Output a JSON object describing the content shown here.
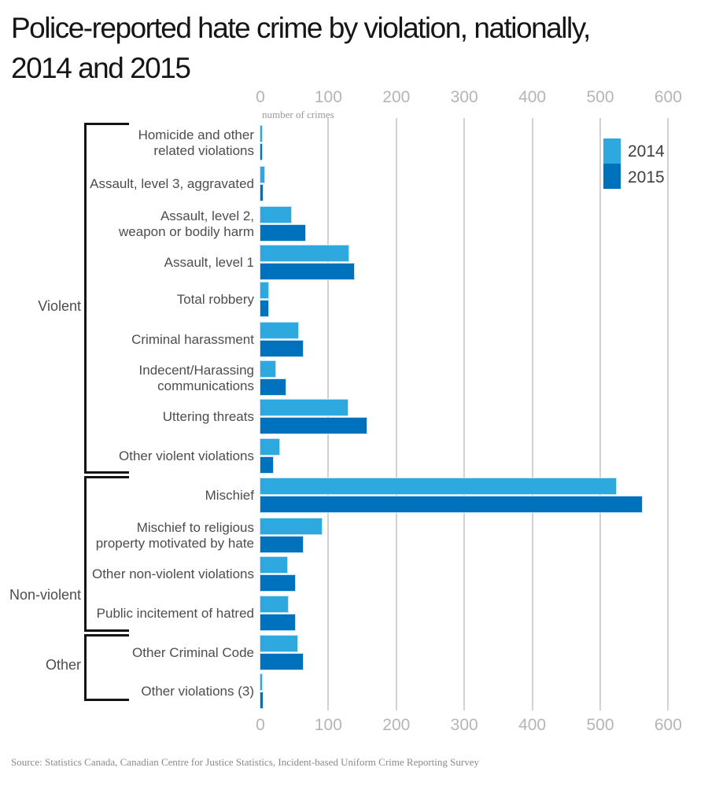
{
  "title_lines": [
    "Police-reported hate crime by violation, nationally,",
    "2014 and 2015"
  ],
  "source": "Source: Statistics Canada, Canadian Centre for Justice Statistics, Incident-based Uniform Crime Reporting Survey",
  "colors": {
    "bar_2014": "#2EA9DF",
    "bar_2015": "#0071BC",
    "gridline": "#D2D2D2",
    "axis_text": "#B5B5B5",
    "category_text": "#4D4D4D",
    "bracket": "#141414"
  },
  "chart_data": {
    "type": "bar",
    "orientation": "horizontal",
    "title": "Police-reported hate crime by violation, nationally, 2014 and 2015",
    "xlabel": "number of crimes",
    "ylabel": "",
    "xlim": [
      0,
      600
    ],
    "x_ticks": [
      0,
      100,
      200,
      300,
      400,
      500,
      600
    ],
    "grid": true,
    "legend_position": "top-right",
    "legend": [
      {
        "name": "2014",
        "color": "#2EA9DF"
      },
      {
        "name": "2015",
        "color": "#0071BC"
      }
    ],
    "categories": [
      "Homicide and other related violations",
      "Assault, level 3, aggravated",
      "Assault, level 2, weapon or bodily harm",
      "Assault, level 1",
      "Total robbery",
      "Criminal harassment",
      "Indecent/Harassing communications",
      "Uttering threats",
      "Other violent violations",
      "Mischief",
      "Mischief to religious property motivated by hate",
      "Other non-violent violations",
      "Public incitement of hatred",
      "Other Criminal Code",
      "Other violations (3)"
    ],
    "category_label_lines": [
      [
        "Homicide and other",
        "related violations"
      ],
      [
        "Assault, level 3, aggravated"
      ],
      [
        "Assault, level 2,",
        "weapon or bodily harm"
      ],
      [
        "Assault, level 1"
      ],
      [
        "Total robbery"
      ],
      [
        "Criminal harassment"
      ],
      [
        "Indecent/Harassing",
        "communications"
      ],
      [
        "Uttering threats"
      ],
      [
        "Other violent violations"
      ],
      [
        "Mischief"
      ],
      [
        "Mischief to religious",
        "property motivated by hate"
      ],
      [
        "Other non-violent violations"
      ],
      [
        "Public incitement of hatred"
      ],
      [
        "Other Criminal Code"
      ],
      [
        "Other violations (3)"
      ]
    ],
    "series": [
      {
        "name": "2014",
        "values": [
          2,
          6,
          45,
          130,
          11,
          56,
          22,
          128,
          28,
          523,
          90,
          39,
          41,
          54,
          2
        ]
      },
      {
        "name": "2015",
        "values": [
          1,
          3,
          66,
          138,
          12,
          63,
          37,
          156,
          18,
          561,
          62,
          51,
          51,
          63,
          3
        ]
      }
    ],
    "groups": [
      {
        "label": "Violent",
        "from": 0,
        "to": 8
      },
      {
        "label": "Non-violent",
        "from": 9,
        "to": 12
      },
      {
        "label": "Other",
        "from": 13,
        "to": 14
      }
    ]
  }
}
